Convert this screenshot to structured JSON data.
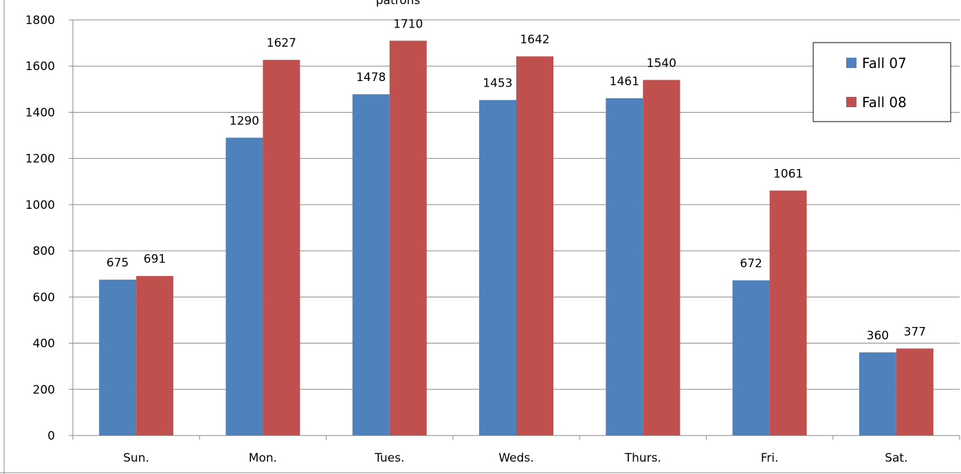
{
  "chart_data": {
    "type": "bar",
    "title": "patrons",
    "categories": [
      "Sun.",
      "Mon.",
      "Tues.",
      "Weds.",
      "Thurs.",
      "Fri.",
      "Sat."
    ],
    "series": [
      {
        "name": "Fall 07",
        "color": "#4f81bd",
        "values": [
          675,
          1290,
          1478,
          1453,
          1461,
          672,
          360
        ]
      },
      {
        "name": "Fall 08",
        "color": "#c0504d",
        "values": [
          691,
          1627,
          1710,
          1642,
          1540,
          1061,
          377
        ]
      }
    ],
    "ylim": [
      0,
      1800
    ],
    "yticks": [
      0,
      200,
      400,
      600,
      800,
      1000,
      1200,
      1400,
      1600,
      1800
    ],
    "grid": true,
    "legend_position": "top-right",
    "xlabel": "",
    "ylabel": ""
  }
}
